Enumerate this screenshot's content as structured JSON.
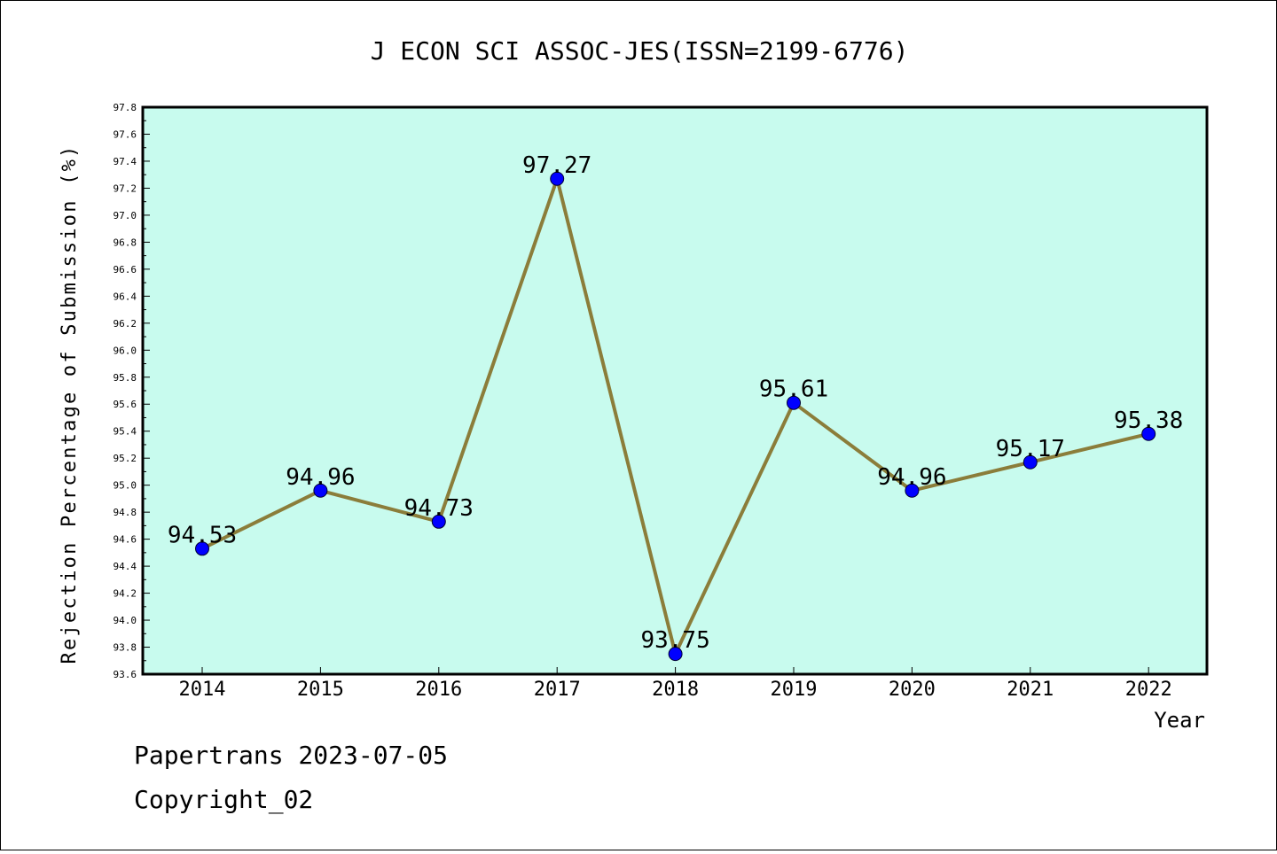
{
  "chart_data": {
    "type": "line",
    "title": "J ECON SCI ASSOC-JES(ISSN=2199-6776)",
    "xlabel": "Year",
    "ylabel": "Rejection Percentage of Submission (%)",
    "categories": [
      "2014",
      "2015",
      "2016",
      "2017",
      "2018",
      "2019",
      "2020",
      "2021",
      "2022"
    ],
    "values": [
      94.53,
      94.96,
      94.73,
      97.27,
      93.75,
      95.61,
      94.96,
      95.17,
      95.38
    ],
    "data_labels": [
      "94.53",
      "94.96",
      "94.73",
      "97.27",
      "93.75",
      "95.61",
      "94.96",
      "95.17",
      "95.38"
    ],
    "ylim": [
      93.6,
      97.8
    ],
    "yticks": [
      "93.6",
      "93.8",
      "94.0",
      "94.2",
      "94.4",
      "94.6",
      "94.8",
      "95.0",
      "95.2",
      "95.4",
      "95.6",
      "95.8",
      "96.0",
      "96.2",
      "96.4",
      "96.6",
      "96.8",
      "97.0",
      "97.2",
      "97.4",
      "97.6",
      "97.8"
    ],
    "grid": false,
    "colors": {
      "plot_background": "#c8fbee",
      "line": "#8b7d3a",
      "marker": "#0000ff"
    }
  },
  "footer": {
    "date_line": "Papertrans 2023-07-05",
    "copyright_line": "Copyright_02"
  }
}
